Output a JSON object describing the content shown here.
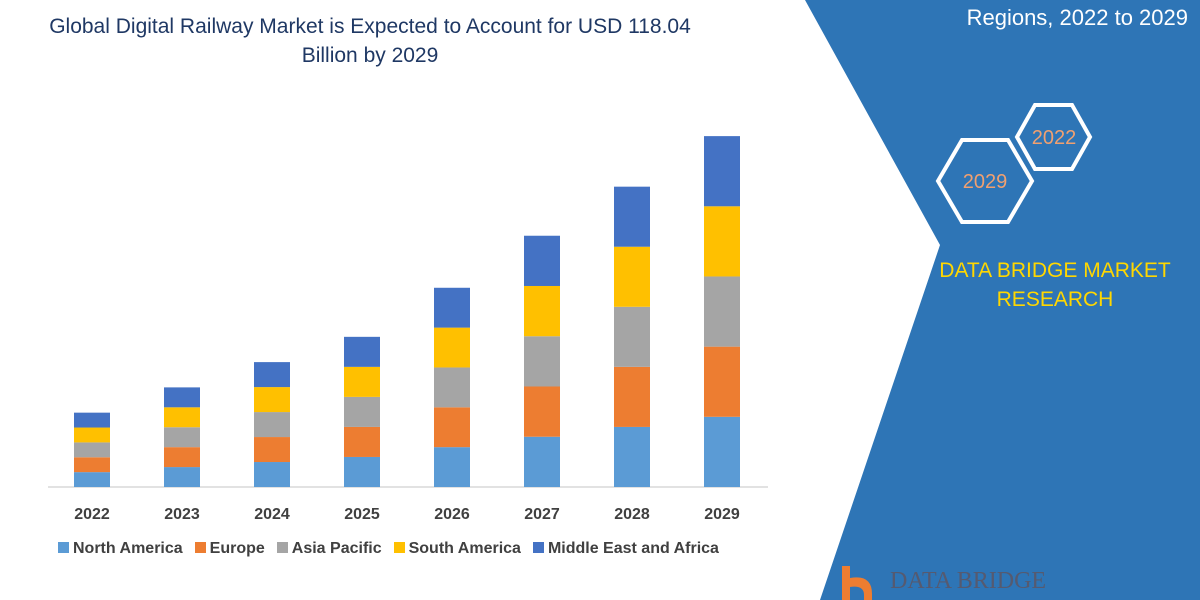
{
  "header": {
    "title": "Global Digital Railway Market is Expected to Account for USD 118.04 Billion by 2029",
    "subtitle": "Regions, 2022 to 2029"
  },
  "badges": {
    "hex_front": "2029",
    "hex_back": "2022",
    "brand": "DATA BRIDGE MARKET RESEARCH",
    "logo": "DATA BRIDGE"
  },
  "colors": {
    "panel": "#2e75b6",
    "North America": "#5b9bd5",
    "Europe": "#ed7d31",
    "Asia Pacific": "#a5a5a5",
    "South America": "#ffc000",
    "Middle East and Africa": "#4472c4"
  },
  "chart_data": {
    "type": "bar",
    "stacked": true,
    "title": "Global Digital Railway Market is Expected to Account for USD 118.04 Billion by 2029",
    "categories": [
      "2022",
      "2023",
      "2024",
      "2025",
      "2026",
      "2027",
      "2028",
      "2029"
    ],
    "legend_position": "bottom",
    "grid": false,
    "series": [
      {
        "name": "North America",
        "values": [
          5.0,
          6.7,
          8.4,
          10.1,
          13.4,
          16.9,
          20.2,
          23.6
        ]
      },
      {
        "name": "Europe",
        "values": [
          5.0,
          6.7,
          8.4,
          10.1,
          13.4,
          16.9,
          20.2,
          23.6
        ]
      },
      {
        "name": "Asia Pacific",
        "values": [
          5.0,
          6.7,
          8.4,
          10.1,
          13.4,
          16.9,
          20.2,
          23.6
        ]
      },
      {
        "name": "South America",
        "values": [
          5.0,
          6.7,
          8.4,
          10.1,
          13.4,
          16.9,
          20.2,
          23.6
        ]
      },
      {
        "name": "Middle East and Africa",
        "values": [
          5.0,
          6.7,
          8.4,
          10.1,
          13.4,
          16.9,
          20.2,
          23.6
        ]
      }
    ]
  }
}
